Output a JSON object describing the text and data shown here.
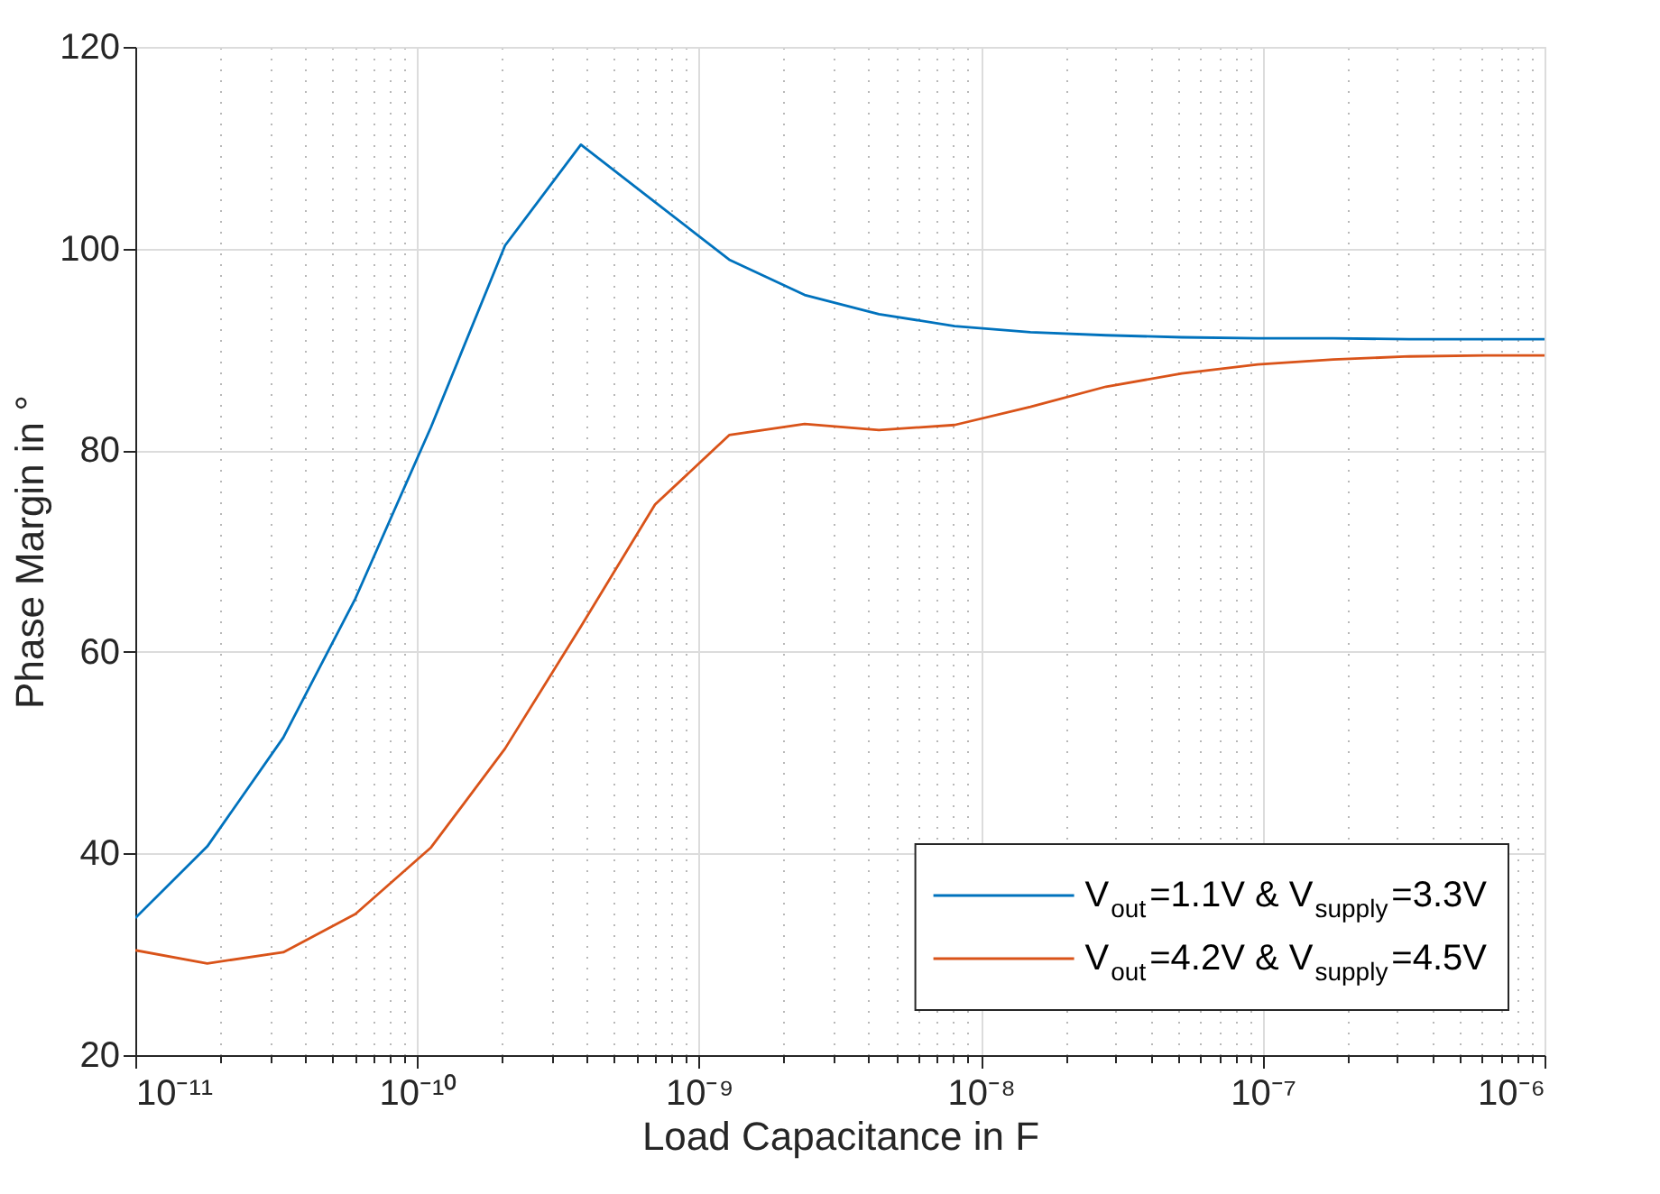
{
  "chart_data": {
    "type": "line",
    "xlabel": "Load Capacitance in F",
    "ylabel": "Phase Margin in °",
    "log": "x",
    "grid": true,
    "legend": "bottom right",
    "line_style": "solid",
    "marker": "none",
    "x": [
      1e-11,
      1.8e-11,
      3.35e-11,
      6.04e-11,
      1.12e-10,
      2.05e-10,
      3.81e-10,
      6.98e-10,
      1.28e-09,
      2.37e-09,
      4.35e-09,
      8.07e-09,
      1.5e-08,
      2.78e-08,
      5.16e-08,
      9.6e-08,
      1.78e-07,
      3.31e-07,
      6.15e-07,
      1e-06
    ],
    "series": [
      {
        "name": "V$_{out}$=1.1V & V$_{supply}$=3.3V",
        "color": "#0072bd",
        "values": [
          33.6,
          40.7,
          51.5,
          65.3,
          82.3,
          100.3,
          110.3,
          104.6,
          98.9,
          95.4,
          93.5,
          92.3,
          91.7,
          91.4,
          91.2,
          91.1,
          91.1,
          91.0,
          91.0,
          91.0
        ]
      },
      {
        "name": "V$_{out}$=4.2V & V$_{supply}$=4.5V",
        "color": "#d95319",
        "values": [
          30.4,
          29.1,
          30.2,
          34.0,
          40.6,
          50.4,
          62.5,
          74.6,
          81.5,
          82.6,
          82.0,
          82.5,
          84.3,
          86.3,
          87.6,
          88.5,
          89.0,
          89.3,
          89.4,
          89.4
        ]
      }
    ],
    "xlim": [
      1e-11,
      1e-06
    ],
    "xticks": [
      {
        "value": 1e-11,
        "label": "10⁻¹¹"
      },
      {
        "value": 2e-11,
        "label": null
      },
      {
        "value": 3e-11,
        "label": null
      },
      {
        "value": 4e-11,
        "label": null
      },
      {
        "value": 5e-11,
        "label": null
      },
      {
        "value": 6e-11,
        "label": null
      },
      {
        "value": 7e-11,
        "label": null
      },
      {
        "value": 8e-11,
        "label": null
      },
      {
        "value": 9e-11,
        "label": null
      },
      {
        "value": 1e-10,
        "label": "10⁻¹⁰"
      },
      {
        "value": 2e-10,
        "label": null
      },
      {
        "value": 3e-10,
        "label": null
      },
      {
        "value": 4e-10,
        "label": null
      },
      {
        "value": 5e-10,
        "label": null
      },
      {
        "value": 6e-10,
        "label": null
      },
      {
        "value": 7e-10,
        "label": null
      },
      {
        "value": 8e-10,
        "label": null
      },
      {
        "value": 9e-10,
        "label": null
      },
      {
        "value": 1e-09,
        "label": "10⁻⁹"
      },
      {
        "value": 2e-09,
        "label": null
      },
      {
        "value": 3e-09,
        "label": null
      },
      {
        "value": 4e-09,
        "label": null
      },
      {
        "value": 5e-09,
        "label": null
      },
      {
        "value": 6e-09,
        "label": null
      },
      {
        "value": 7e-09,
        "label": null
      },
      {
        "value": 8e-09,
        "label": null
      },
      {
        "value": 9e-09,
        "label": null
      },
      {
        "value": 1e-08,
        "label": "10⁻⁸"
      },
      {
        "value": 2e-08,
        "label": null
      },
      {
        "value": 3e-08,
        "label": null
      },
      {
        "value": 4e-08,
        "label": null
      },
      {
        "value": 5e-08,
        "label": null
      },
      {
        "value": 6e-08,
        "label": null
      },
      {
        "value": 7e-08,
        "label": null
      },
      {
        "value": 8e-08,
        "label": null
      },
      {
        "value": 9e-08,
        "label": null
      },
      {
        "value": 1e-07,
        "label": "10⁻⁷"
      },
      {
        "value": 2e-07,
        "label": null
      },
      {
        "value": 3e-07,
        "label": null
      },
      {
        "value": 4e-07,
        "label": null
      },
      {
        "value": 5e-07,
        "label": null
      },
      {
        "value": 6e-07,
        "label": null
      },
      {
        "value": 7e-07,
        "label": null
      },
      {
        "value": 8e-07,
        "label": null
      },
      {
        "value": 9e-07,
        "label": null
      },
      {
        "value": 1e-06,
        "label": "10⁻⁶"
      }
    ],
    "ylim": [
      20,
      120
    ],
    "yticks": [
      20,
      40,
      60,
      80,
      100,
      120
    ]
  }
}
